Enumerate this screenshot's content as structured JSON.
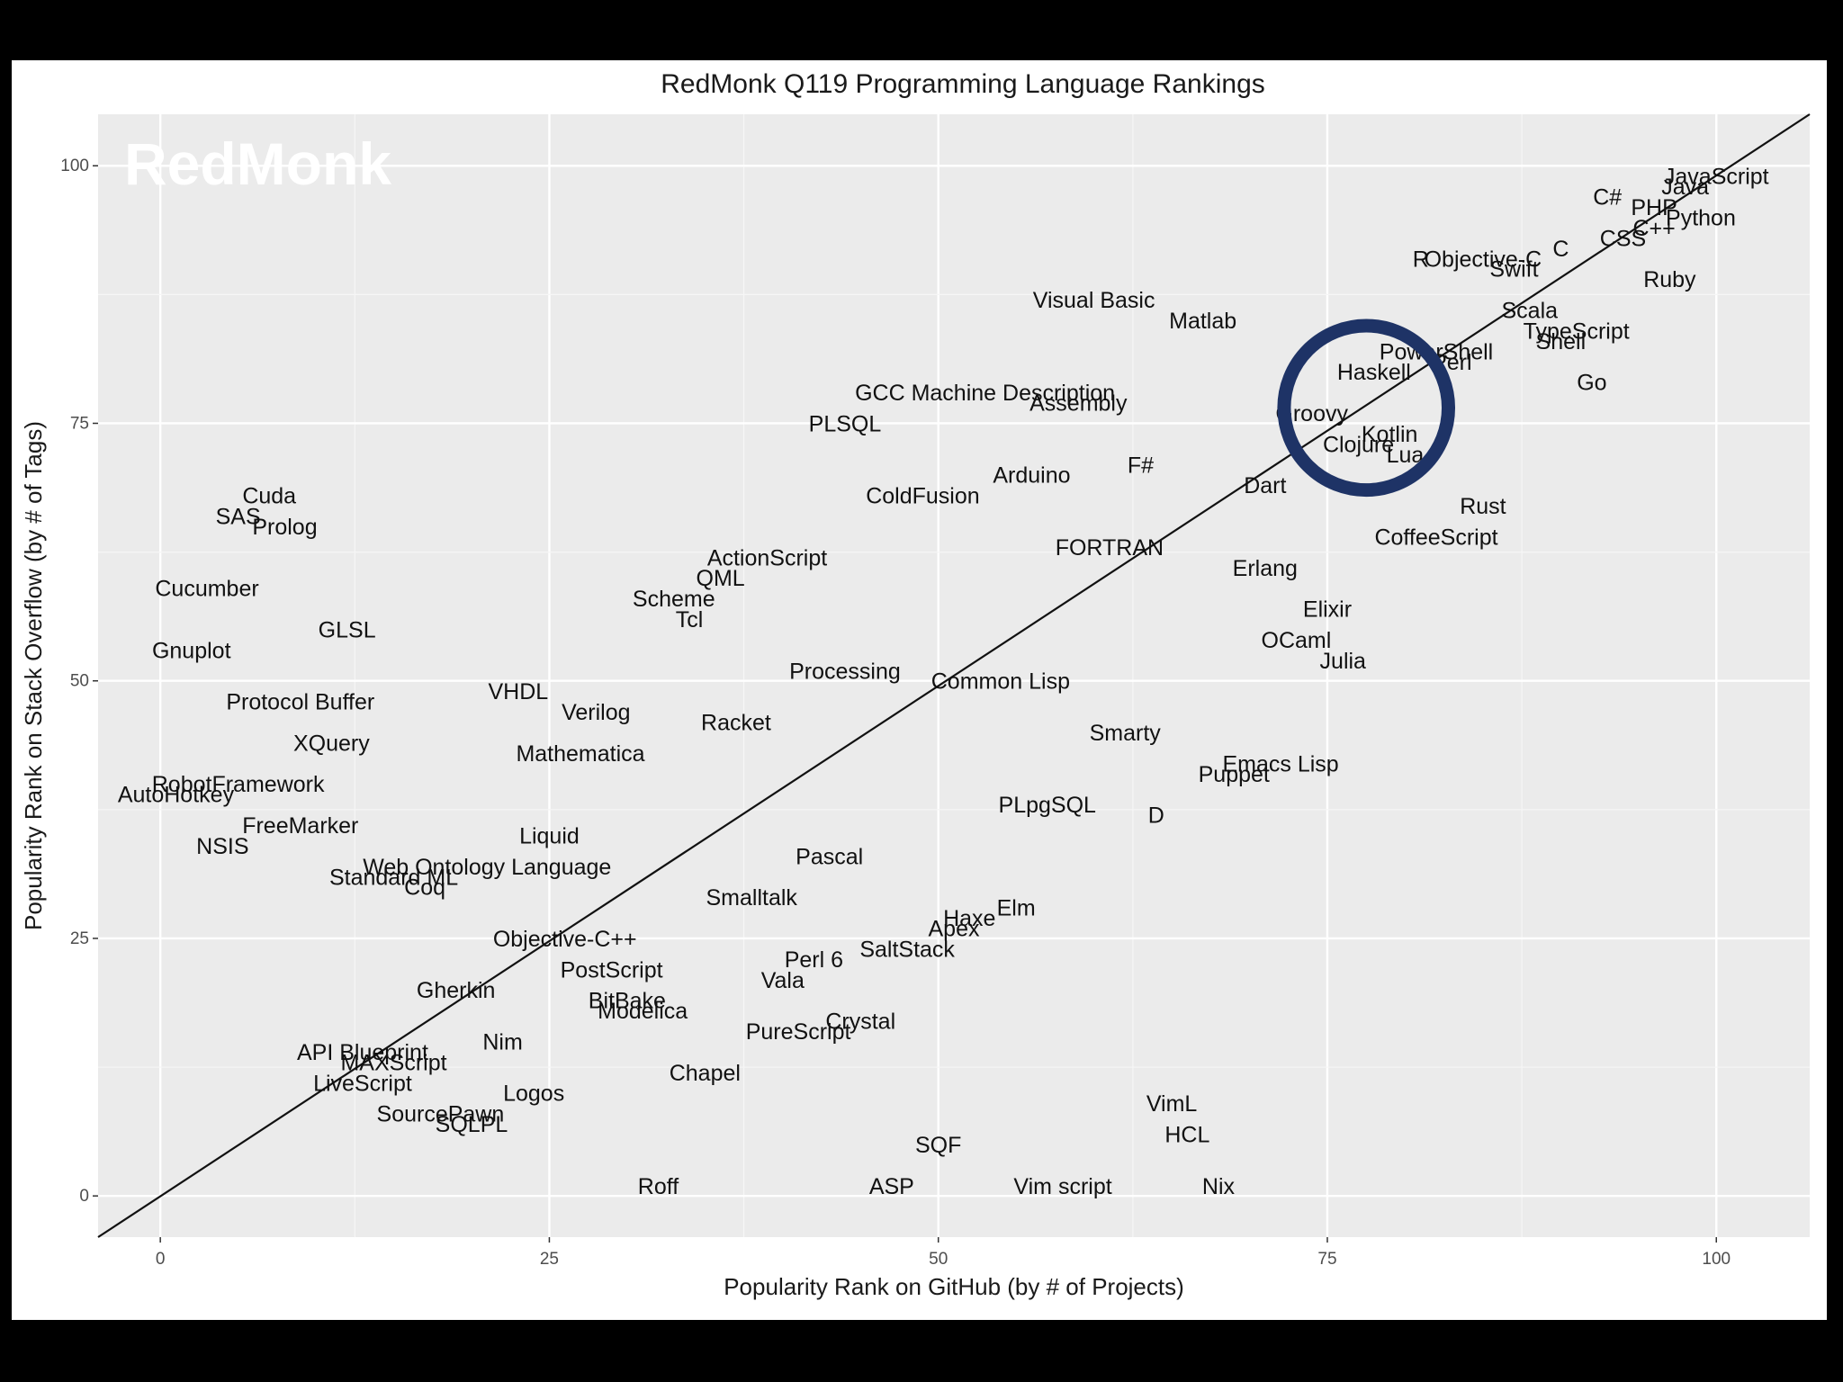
{
  "chart_data": {
    "type": "scatter",
    "title": "RedMonk Q119 Programming Language Rankings",
    "xlabel": "Popularity Rank on GitHub (by # of Projects)",
    "ylabel": "Popularity Rank on Stack Overflow (by # of Tags)",
    "watermark": "RedMonk",
    "xlim": [
      -4,
      106
    ],
    "ylim": [
      -4,
      105
    ],
    "xticks": [
      0,
      25,
      50,
      75,
      100
    ],
    "yticks": [
      0,
      25,
      50,
      75,
      100
    ],
    "grid": true,
    "reference_line": {
      "from": [
        -4,
        -4
      ],
      "to": [
        106,
        105
      ]
    },
    "highlight_circle": {
      "cx": 77.5,
      "cy": 76.5,
      "r": 7.8,
      "color": "#1e3366"
    },
    "points": [
      {
        "label": "JavaScript",
        "x": 100,
        "y": 99
      },
      {
        "label": "Java",
        "x": 98,
        "y": 98
      },
      {
        "label": "Python",
        "x": 99,
        "y": 95
      },
      {
        "label": "PHP",
        "x": 96,
        "y": 96
      },
      {
        "label": "C#",
        "x": 93,
        "y": 97
      },
      {
        "label": "C++",
        "x": 96,
        "y": 94
      },
      {
        "label": "CSS",
        "x": 94,
        "y": 93
      },
      {
        "label": "Ruby",
        "x": 97,
        "y": 89
      },
      {
        "label": "C",
        "x": 90,
        "y": 92
      },
      {
        "label": "Objective-C",
        "x": 85,
        "y": 91
      },
      {
        "label": "R",
        "x": 81,
        "y": 91
      },
      {
        "label": "Swift",
        "x": 87,
        "y": 90
      },
      {
        "label": "Scala",
        "x": 88,
        "y": 86
      },
      {
        "label": "TypeScript",
        "x": 91,
        "y": 84
      },
      {
        "label": "Shell",
        "x": 90,
        "y": 83
      },
      {
        "label": "Go",
        "x": 92,
        "y": 79
      },
      {
        "label": "PowerShell",
        "x": 82,
        "y": 82
      },
      {
        "label": "Perl",
        "x": 83,
        "y": 81
      },
      {
        "label": "Haskell",
        "x": 78,
        "y": 80
      },
      {
        "label": "Visual Basic",
        "x": 60,
        "y": 87
      },
      {
        "label": "Matlab",
        "x": 67,
        "y": 85
      },
      {
        "label": "GCC Machine Description",
        "x": 53,
        "y": 78
      },
      {
        "label": "Assembly",
        "x": 59,
        "y": 77
      },
      {
        "label": "PLSQL",
        "x": 44,
        "y": 75
      },
      {
        "label": "Groovy",
        "x": 74,
        "y": 76
      },
      {
        "label": "Kotlin",
        "x": 79,
        "y": 74
      },
      {
        "label": "Clojure",
        "x": 77,
        "y": 73
      },
      {
        "label": "Lua",
        "x": 80,
        "y": 72
      },
      {
        "label": "F#",
        "x": 63,
        "y": 71
      },
      {
        "label": "Arduino",
        "x": 56,
        "y": 70
      },
      {
        "label": "Dart",
        "x": 71,
        "y": 69
      },
      {
        "label": "ColdFusion",
        "x": 49,
        "y": 68
      },
      {
        "label": "Rust",
        "x": 85,
        "y": 67
      },
      {
        "label": "CoffeeScript",
        "x": 82,
        "y": 64
      },
      {
        "label": "FORTRAN",
        "x": 61,
        "y": 63
      },
      {
        "label": "Erlang",
        "x": 71,
        "y": 61
      },
      {
        "label": "ActionScript",
        "x": 39,
        "y": 62
      },
      {
        "label": "QML",
        "x": 36,
        "y": 60
      },
      {
        "label": "Scheme",
        "x": 33,
        "y": 58
      },
      {
        "label": "Tcl",
        "x": 34,
        "y": 56
      },
      {
        "label": "Elixir",
        "x": 75,
        "y": 57
      },
      {
        "label": "OCaml",
        "x": 73,
        "y": 54
      },
      {
        "label": "Julia",
        "x": 76,
        "y": 52
      },
      {
        "label": "Cuda",
        "x": 7,
        "y": 68
      },
      {
        "label": "SAS",
        "x": 5,
        "y": 66
      },
      {
        "label": "Prolog",
        "x": 8,
        "y": 65
      },
      {
        "label": "Cucumber",
        "x": 3,
        "y": 59
      },
      {
        "label": "GLSL",
        "x": 12,
        "y": 55
      },
      {
        "label": "Gnuplot",
        "x": 2,
        "y": 53
      },
      {
        "label": "Processing",
        "x": 44,
        "y": 51
      },
      {
        "label": "Common Lisp",
        "x": 54,
        "y": 50
      },
      {
        "label": "Protocol Buffer",
        "x": 9,
        "y": 48
      },
      {
        "label": "VHDL",
        "x": 23,
        "y": 49
      },
      {
        "label": "Verilog",
        "x": 28,
        "y": 47
      },
      {
        "label": "Racket",
        "x": 37,
        "y": 46
      },
      {
        "label": "Smarty",
        "x": 62,
        "y": 45
      },
      {
        "label": "XQuery",
        "x": 11,
        "y": 44
      },
      {
        "label": "Mathematica",
        "x": 27,
        "y": 43
      },
      {
        "label": "Emacs Lisp",
        "x": 72,
        "y": 42
      },
      {
        "label": "Puppet",
        "x": 69,
        "y": 41
      },
      {
        "label": "RobotFramework",
        "x": 5,
        "y": 40
      },
      {
        "label": "AutoHotkey",
        "x": 1,
        "y": 39
      },
      {
        "label": "PLpgSQL",
        "x": 57,
        "y": 38
      },
      {
        "label": "D",
        "x": 64,
        "y": 37
      },
      {
        "label": "FreeMarker",
        "x": 9,
        "y": 36
      },
      {
        "label": "NSIS",
        "x": 4,
        "y": 34
      },
      {
        "label": "Liquid",
        "x": 25,
        "y": 35
      },
      {
        "label": "Pascal",
        "x": 43,
        "y": 33
      },
      {
        "label": "Web Ontology Language",
        "x": 21,
        "y": 32
      },
      {
        "label": "Standard ML",
        "x": 15,
        "y": 31
      },
      {
        "label": "Coq",
        "x": 17,
        "y": 30
      },
      {
        "label": "Smalltalk",
        "x": 38,
        "y": 29
      },
      {
        "label": "Elm",
        "x": 55,
        "y": 28
      },
      {
        "label": "Haxe",
        "x": 52,
        "y": 27
      },
      {
        "label": "Apex",
        "x": 51,
        "y": 26
      },
      {
        "label": "Objective-C++",
        "x": 26,
        "y": 25
      },
      {
        "label": "SaltStack",
        "x": 48,
        "y": 24
      },
      {
        "label": "Perl 6",
        "x": 42,
        "y": 23
      },
      {
        "label": "PostScript",
        "x": 29,
        "y": 22
      },
      {
        "label": "Vala",
        "x": 40,
        "y": 21
      },
      {
        "label": "Gherkin",
        "x": 19,
        "y": 20
      },
      {
        "label": "BitBake",
        "x": 30,
        "y": 19
      },
      {
        "label": "Modelica",
        "x": 31,
        "y": 18
      },
      {
        "label": "Crystal",
        "x": 45,
        "y": 17
      },
      {
        "label": "PureScript",
        "x": 41,
        "y": 16
      },
      {
        "label": "Nim",
        "x": 22,
        "y": 15
      },
      {
        "label": "API Blueprint",
        "x": 13,
        "y": 14
      },
      {
        "label": "MAXScript",
        "x": 15,
        "y": 13
      },
      {
        "label": "Chapel",
        "x": 35,
        "y": 12
      },
      {
        "label": "LiveScript",
        "x": 13,
        "y": 11
      },
      {
        "label": "Logos",
        "x": 24,
        "y": 10
      },
      {
        "label": "VimL",
        "x": 65,
        "y": 9
      },
      {
        "label": "SourcePawn",
        "x": 18,
        "y": 8
      },
      {
        "label": "SQLPL",
        "x": 20,
        "y": 7
      },
      {
        "label": "HCL",
        "x": 66,
        "y": 6
      },
      {
        "label": "SQF",
        "x": 50,
        "y": 5
      },
      {
        "label": "Roff",
        "x": 32,
        "y": 1
      },
      {
        "label": "ASP",
        "x": 47,
        "y": 1
      },
      {
        "label": "Vim script",
        "x": 58,
        "y": 1
      },
      {
        "label": "Nix",
        "x": 68,
        "y": 1
      }
    ]
  }
}
